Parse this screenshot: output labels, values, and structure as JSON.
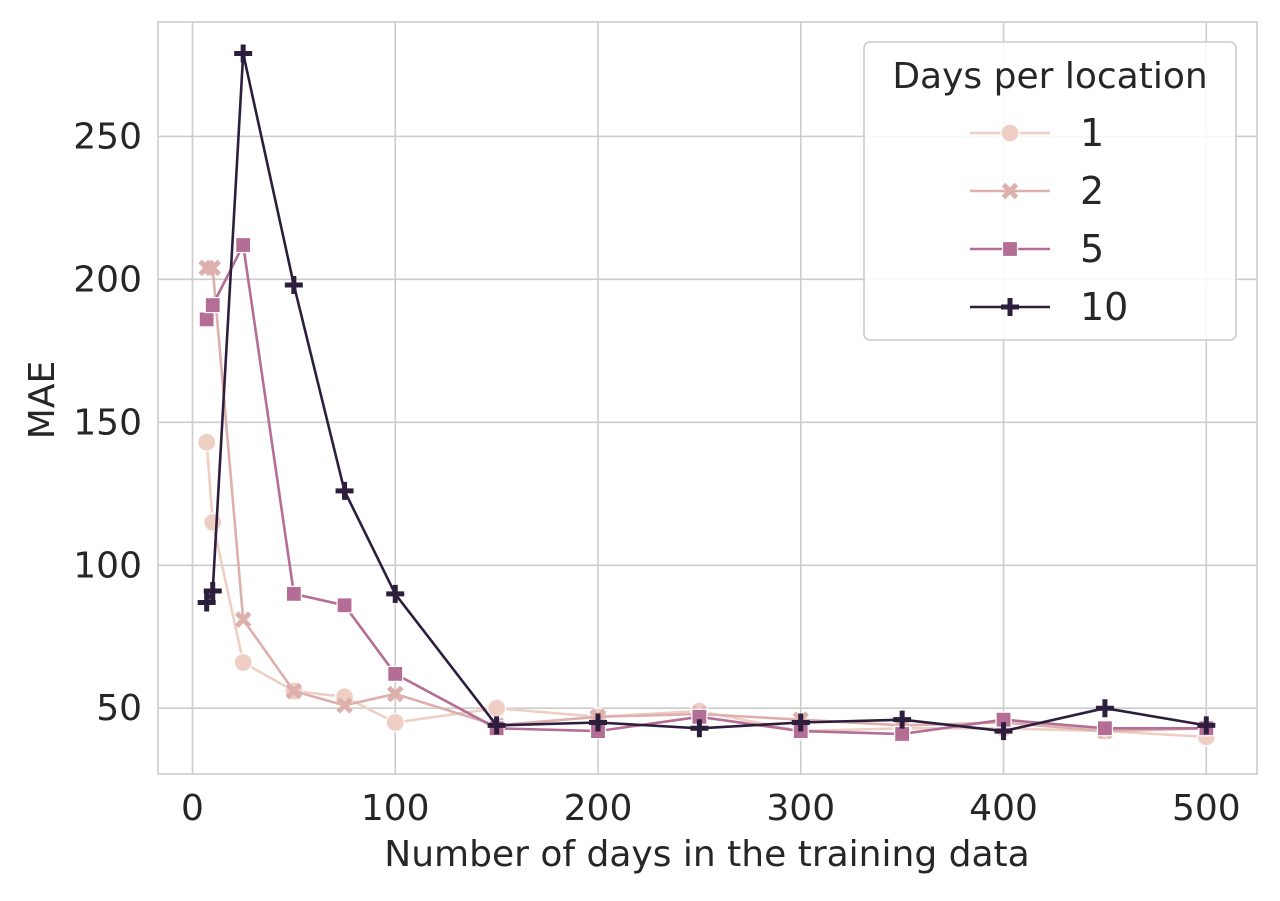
{
  "chart_data": {
    "type": "line",
    "title": "",
    "xlabel": "Number of days in the training data",
    "ylabel": "MAE",
    "xlim": [
      -17,
      525
    ],
    "ylim": [
      27,
      290
    ],
    "xticks": [
      0,
      100,
      200,
      300,
      400,
      500
    ],
    "yticks": [
      50,
      100,
      150,
      200,
      250
    ],
    "grid": true,
    "legend": {
      "title": "Days per location",
      "position": "top-right"
    },
    "series": [
      {
        "name": "1",
        "color": "#efcfc4",
        "marker": "circle",
        "x": [
          7,
          10,
          25,
          50,
          75,
          100,
          150,
          200,
          250,
          300,
          350,
          400,
          450,
          500
        ],
        "y": [
          143,
          115,
          66,
          56,
          54,
          45,
          50,
          47,
          49,
          42,
          43,
          43,
          42,
          40
        ]
      },
      {
        "name": "2",
        "color": "#ddb0ad",
        "marker": "x",
        "x": [
          7,
          10,
          25,
          50,
          75,
          100,
          150,
          200,
          250,
          300,
          350,
          400,
          450,
          500
        ],
        "y": [
          204,
          204,
          81,
          56,
          51,
          55,
          44,
          47,
          48,
          46,
          44,
          45,
          42,
          43
        ]
      },
      {
        "name": "5",
        "color": "#b46e95",
        "marker": "square",
        "x": [
          7,
          10,
          25,
          50,
          75,
          100,
          150,
          200,
          250,
          300,
          350,
          400,
          450,
          500
        ],
        "y": [
          186,
          191,
          212,
          90,
          86,
          62,
          43,
          42,
          47,
          42,
          41,
          46,
          43,
          43
        ]
      },
      {
        "name": "10",
        "color": "#2d1e3e",
        "marker": "plus",
        "x": [
          7,
          10,
          25,
          50,
          75,
          100,
          150,
          200,
          250,
          300,
          350,
          400,
          450,
          500
        ],
        "y": [
          87,
          91,
          279,
          198,
          126,
          90,
          44,
          45,
          43,
          45,
          46,
          42,
          50,
          44
        ]
      }
    ]
  }
}
